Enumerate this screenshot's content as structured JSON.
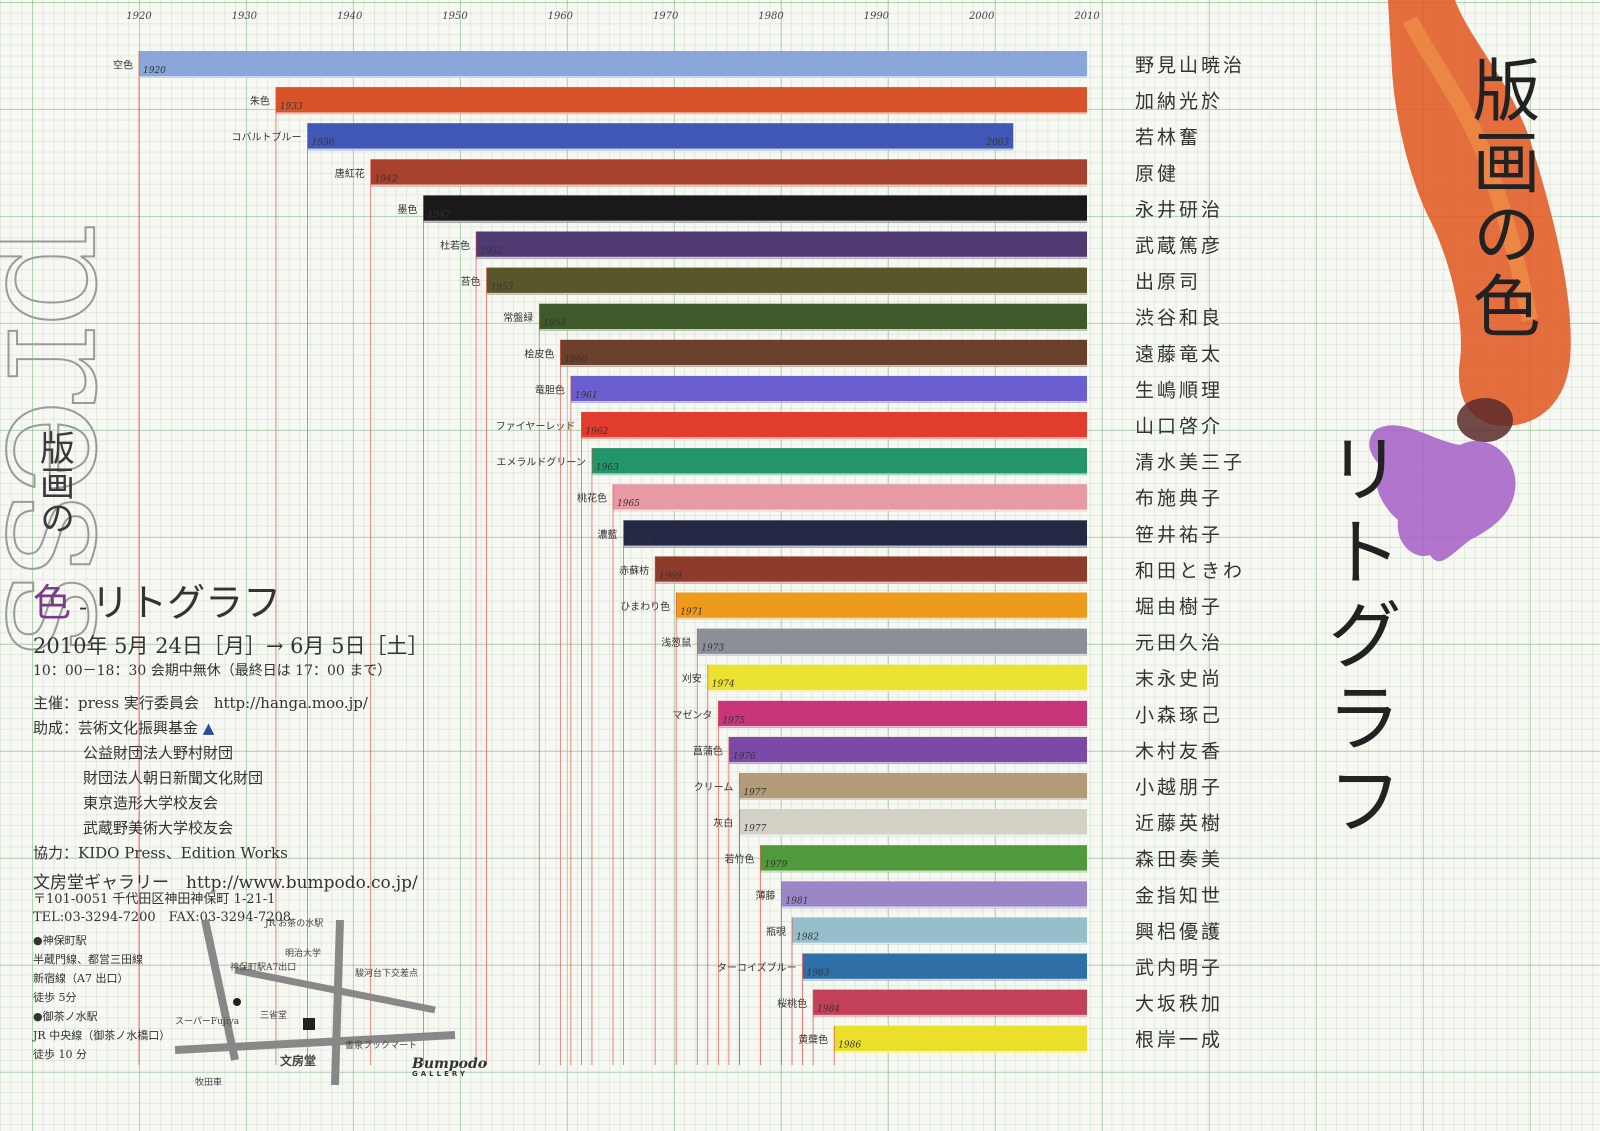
{
  "chart_data": {
    "type": "bar",
    "x_ticks": [
      "1920",
      "1930",
      "1940",
      "1950",
      "1960",
      "1970",
      "1980",
      "1990",
      "2000",
      "2010"
    ],
    "xlim": [
      1920,
      2010
    ],
    "grid": true,
    "bars": [
      {
        "color_name": "空色",
        "start": "1920",
        "end": 2010,
        "color": "#8aa7dc",
        "artist": "野見山暁治"
      },
      {
        "color_name": "朱色",
        "start": "1933",
        "end": 2010,
        "color": "#d8532a",
        "artist": "加納光於"
      },
      {
        "color_name": "コバルトブルー",
        "start": "1936",
        "end": 2003,
        "end_label": "2003",
        "color": "#3f58b8",
        "artist": "若林奮"
      },
      {
        "color_name": "唐紅花",
        "start": "1942",
        "end": 2010,
        "color": "#a8402e",
        "artist": "原健"
      },
      {
        "color_name": "墨色",
        "start": "1947",
        "end": 2010,
        "color": "#1a1818",
        "artist": "永井研治"
      },
      {
        "color_name": "杜若色",
        "start": "1952",
        "end": 2010,
        "color": "#4f3a72",
        "artist": "武蔵篤彦"
      },
      {
        "color_name": "苔色",
        "start": "1953",
        "end": 2010,
        "color": "#58562a",
        "artist": "出原司"
      },
      {
        "color_name": "常盤緑",
        "start": "1958",
        "end": 2010,
        "color": "#3e5a2a",
        "artist": "渋谷和良"
      },
      {
        "color_name": "桧皮色",
        "start": "1960",
        "end": 2010,
        "color": "#6a3f2c",
        "artist": "遠藤竜太"
      },
      {
        "color_name": "竜胆色",
        "start": "1961",
        "end": 2010,
        "color": "#6b5fd0",
        "artist": "生嶋順理"
      },
      {
        "color_name": "ファイヤーレッド",
        "start": "1962",
        "end": 2010,
        "color": "#e23c2e",
        "artist": "山口啓介"
      },
      {
        "color_name": "エメラルドグリーン",
        "start": "1963",
        "end": 2010,
        "color": "#24946a",
        "artist": "清水美三子"
      },
      {
        "color_name": "桃花色",
        "start": "1965",
        "end": 2010,
        "color": "#e79aa4",
        "artist": "布施典子"
      },
      {
        "color_name": "濃藍",
        "start": "1966",
        "end": 2010,
        "color": "#252845",
        "artist": "笹井祐子"
      },
      {
        "color_name": "赤蘇枋",
        "start": "1969",
        "end": 2010,
        "color": "#8e3b2c",
        "artist": "和田ときわ"
      },
      {
        "color_name": "ひまわり色",
        "start": "1971",
        "end": 2010,
        "color": "#ee9a1c",
        "artist": "堀由樹子"
      },
      {
        "color_name": "浅葱鼠",
        "start": "1973",
        "end": 2010,
        "color": "#8d8f98",
        "artist": "元田久治"
      },
      {
        "color_name": "刈安",
        "start": "1974",
        "end": 2010,
        "color": "#ece231",
        "artist": "末永史尚"
      },
      {
        "color_name": "マゼンタ",
        "start": "1975",
        "end": 2010,
        "color": "#c8357a",
        "artist": "小森琢己"
      },
      {
        "color_name": "菖蒲色",
        "start": "1976",
        "end": 2010,
        "color": "#7a4aa6",
        "artist": "木村友香"
      },
      {
        "color_name": "クリーム",
        "start": "1977",
        "end": 2010,
        "color": "#b39a78",
        "artist": "小越朋子"
      },
      {
        "color_name": "灰白",
        "start": "1977",
        "end": 2010,
        "color": "#d3d0c6",
        "artist": "近藤英樹"
      },
      {
        "color_name": "若竹色",
        "start": "1979",
        "end": 2010,
        "color": "#4f9a3c",
        "artist": "森田奏美"
      },
      {
        "color_name": "薄藤",
        "start": "1981",
        "end": 2010,
        "color": "#9b86c8",
        "artist": "金指知世"
      },
      {
        "color_name": "瓶覗",
        "start": "1982",
        "end": 2010,
        "color": "#94bfcb",
        "artist": "興梠優護"
      },
      {
        "color_name": "ターコイズブルー",
        "start": "1983",
        "end": 2010,
        "color": "#2f6fa8",
        "artist": "武内明子"
      },
      {
        "color_name": "桜桃色",
        "start": "1984",
        "end": 2010,
        "color": "#c24058",
        "artist": "大坂秩加"
      },
      {
        "color_name": "黄蘗色",
        "start": "1986",
        "end": 2010,
        "color": "#eadf2a",
        "artist": "根岸一成"
      }
    ]
  },
  "title_vertical": "版画の色",
  "title_vertical2": "リトグラフ",
  "press_word": "press",
  "small_title_vertical": "版画の",
  "subtitle": {
    "iro": "色",
    "dash": "-",
    "rest": "リトグラフ"
  },
  "info": {
    "dates": "2010年 5月 24日［月］→ 6月 5日［土］",
    "hours": "10：00－18：30 会期中無休（最終日は 17：00 まで）",
    "organizer": "主催：press 実行委員会　http://hanga.moo.jp/",
    "support_label": "助成：芸術文化振興基金",
    "supporters": [
      "公益財団法人野村財団",
      "財団法人朝日新聞文化財団",
      "東京造形大学校友会",
      "武蔵野美術大学校友会"
    ],
    "cooperation": "協力：KIDO Press、Edition Works",
    "gallery": "文房堂ギャラリー　http://www.bumpodo.co.jp/",
    "address": "〒101-0051 千代田区神田神保町 1-21-1",
    "tel": "TEL:03-3294-7200　FAX:03-3294-7208",
    "access": [
      "●神保町駅",
      "半蔵門線、都営三田線",
      "新宿線（A7 出口）",
      "徒歩 5分",
      "●御茶ノ水駅",
      "JR 中央線（御茶ノ水橋口）",
      "徒歩 10 分"
    ]
  },
  "map": {
    "labels": [
      "JR お茶の水駅",
      "明治大学",
      "神保町駅A7出口",
      "駿河台下交差点",
      "三省堂",
      "スーパーFujiya",
      "牧田車",
      "書泉ブックマート",
      "文房堂"
    ]
  },
  "logo": {
    "name": "Bumpodo",
    "sub": "GALLERY"
  }
}
